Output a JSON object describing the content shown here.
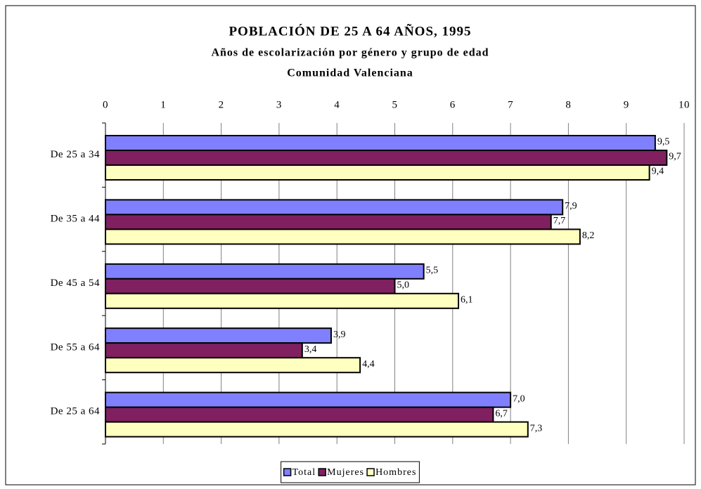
{
  "chart_data": {
    "type": "hbar",
    "title": "POBLACIÓN DE 25 A 64 AÑOS, 1995",
    "subtitle": [
      "Años de escolarización por género y grupo de edad",
      "Comunidad Valenciana"
    ],
    "categories": [
      "De 25 a 34",
      "De 35 a 44",
      "De 45 a 54",
      "De 55 a 64",
      "De 25 a 64"
    ],
    "series": [
      {
        "name": "Total",
        "color": "#8080ff",
        "values": [
          9.5,
          7.9,
          5.5,
          3.9,
          7.0
        ],
        "value_labels": [
          "9,5",
          "7,9",
          "5,5",
          "3,9",
          "7,0"
        ]
      },
      {
        "name": "Mujeres",
        "color": "#802060",
        "values": [
          9.7,
          7.7,
          5.0,
          3.4,
          6.7
        ],
        "value_labels": [
          "9,7",
          "7,7",
          "5,0",
          "3,4",
          "6,7"
        ]
      },
      {
        "name": "Hombres",
        "color": "#ffffc0",
        "values": [
          9.4,
          8.2,
          6.1,
          4.4,
          7.3
        ],
        "value_labels": [
          "9,4",
          "8,2",
          "6,1",
          "4,4",
          "7,3"
        ]
      }
    ],
    "xlim": [
      0,
      10
    ],
    "xticks": [
      0,
      1,
      2,
      3,
      4,
      5,
      6,
      7,
      8,
      9,
      10
    ],
    "grid": true,
    "legend": "bottom"
  }
}
